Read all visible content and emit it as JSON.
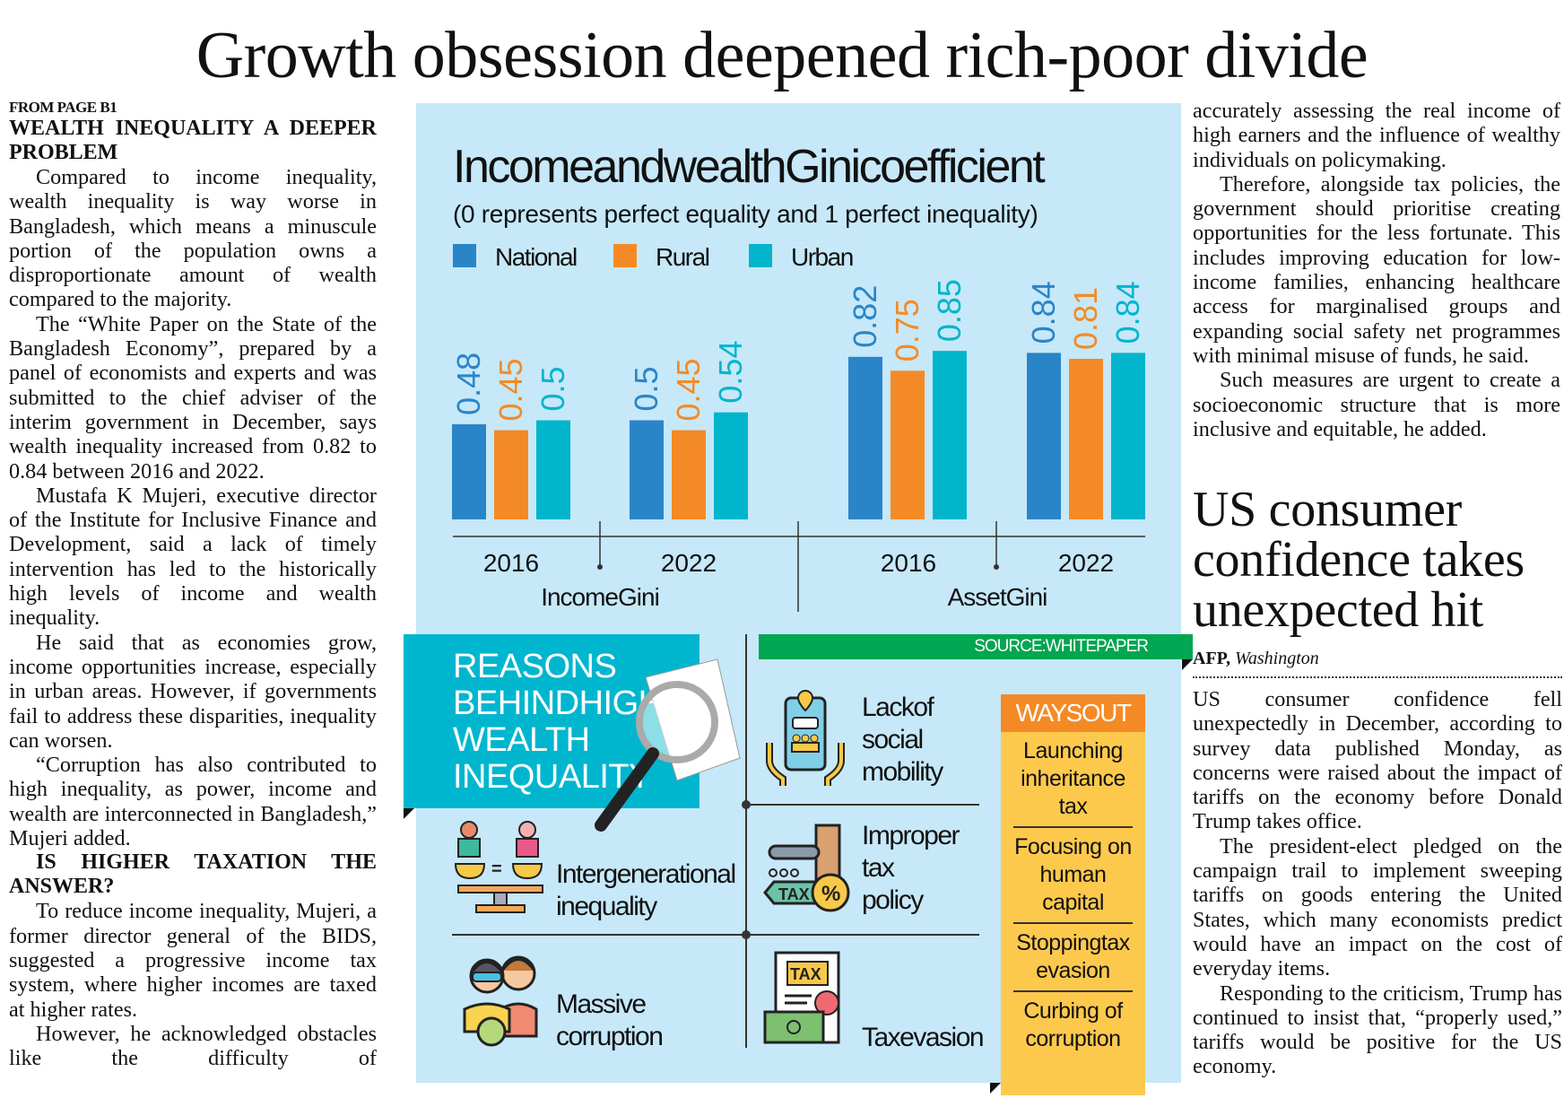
{
  "headline": "Growth obsession deepened rich-poor divide",
  "left": {
    "kicker": "FROM PAGE B1",
    "subhead1": "WEALTH INEQUALITY A DEEPER PROBLEM",
    "p1": "Compared to income inequality, wealth inequality is way worse in Bangladesh, which means a minuscule portion of the population owns a disproportionate amount of wealth compared to the majority.",
    "p2": "The “White Paper on the State of the Bangladesh Economy”, prepared by a panel of economists and experts and was submitted to the chief adviser of the interim government in December, says wealth inequality increased from 0.82 to 0.84 between 2016 and 2022.",
    "p3": "Mustafa K Mujeri, executive director of the Institute for Inclusive Finance and Development, said a lack of timely intervention has led to the historically high levels of income and wealth inequality.",
    "p4": "He said that as economies grow, income opportunities increase, especially in urban areas. However, if governments fail to address these disparities, inequality can worsen.",
    "p5": "“Corruption has also contributed to high inequality, as power, income and wealth are interconnected in Bangladesh,” Mujeri added.",
    "subhead2": "IS HIGHER TAXATION THE ANSWER?",
    "p6": "To reduce income inequality, Mujeri, a former director general of the BIDS, suggested a progressive income tax system, where higher incomes are taxed at higher rates.",
    "p7": "However, he acknowledged obstacles like the difficulty of"
  },
  "right": {
    "p1": "accurately assessing the real income of high earners and the influence of wealthy individuals on policymaking.",
    "p2": "Therefore, alongside tax policies, the government should prioritise creating opportunities for the less fortunate. This includes improving education for low-income families, enhancing healthcare access for marginalised groups and expanding social safety net programmes with minimal misuse of funds, he said.",
    "p3": "Such measures are urgent to create a socioeconomic structure that is more inclusive and equitable, he added."
  },
  "us_article": {
    "title": "US consumer confidence takes unexpected hit",
    "byline_agency": "AFP,",
    "byline_place": "Washington",
    "p1": "US consumer confidence fell unexpectedly in December, according to survey data published Monday, as concerns were raised about the impact of tariffs on the economy before Donald Trump takes office.",
    "p2": "The president-elect pledged on the campaign trail to implement sweeping tariffs on goods entering the United States, which many economists predict would have an impact on the cost of everyday items.",
    "p3": "Responding to the criticism, Trump has continued to insist that, “properly used,” tariffs would be positive for the US economy."
  },
  "chart_data": {
    "type": "bar",
    "title": "IncomeandwealthGinicoefficient",
    "subtitle": "(0 represents perfect equality and 1 perfect inequality)",
    "groups": [
      "IncomeGini",
      "AssetGini"
    ],
    "categories": [
      "2016",
      "2022",
      "2016",
      "2022"
    ],
    "category_groups": [
      0,
      0,
      1,
      1
    ],
    "series": [
      {
        "name": "National",
        "color": "#2a85c8",
        "values": [
          0.48,
          0.5,
          0.82,
          0.84
        ],
        "labels": [
          "0.48",
          "0.5",
          "0.82",
          "0.84"
        ]
      },
      {
        "name": "Rural",
        "color": "#f48a25",
        "values": [
          0.45,
          0.45,
          0.75,
          0.81
        ],
        "labels": [
          "0.45",
          "0.45",
          "0.75",
          "0.81"
        ]
      },
      {
        "name": "Urban",
        "color": "#00b5cc",
        "values": [
          0.5,
          0.54,
          0.85,
          0.84
        ],
        "labels": [
          "0.5",
          "0.54",
          "0.85",
          "0.84"
        ]
      }
    ],
    "ylim": [
      0,
      1
    ],
    "grid": false,
    "legend": "top-left"
  },
  "reasons": {
    "title_lines": [
      "REASONS",
      "BEHINDHIGH",
      "WEALTH",
      "INEQUALITY"
    ],
    "items": [
      {
        "icon": "social-mobility-icon",
        "lines": [
          "Lackof",
          "social",
          "mobility"
        ]
      },
      {
        "icon": "gavel-tax-icon",
        "lines": [
          "Improper",
          "tax",
          "policy"
        ]
      },
      {
        "icon": "balance-scale-icon",
        "lines": [
          "Intergenerational",
          "inequality"
        ]
      },
      {
        "icon": "corruption-people-icon",
        "lines": [
          "Massive",
          "corruption"
        ]
      },
      {
        "icon": "tax-document-icon",
        "lines": [
          "Taxevasion"
        ]
      }
    ],
    "color": "#00b6cf"
  },
  "source": "SOURCE:WHITEPAPER",
  "ways_out": {
    "title": "WAYSOUT",
    "items": [
      "Launching inheritance tax",
      "Focusing on human capital",
      "Stoppingtax evasion",
      "Curbing of corruption"
    ]
  }
}
